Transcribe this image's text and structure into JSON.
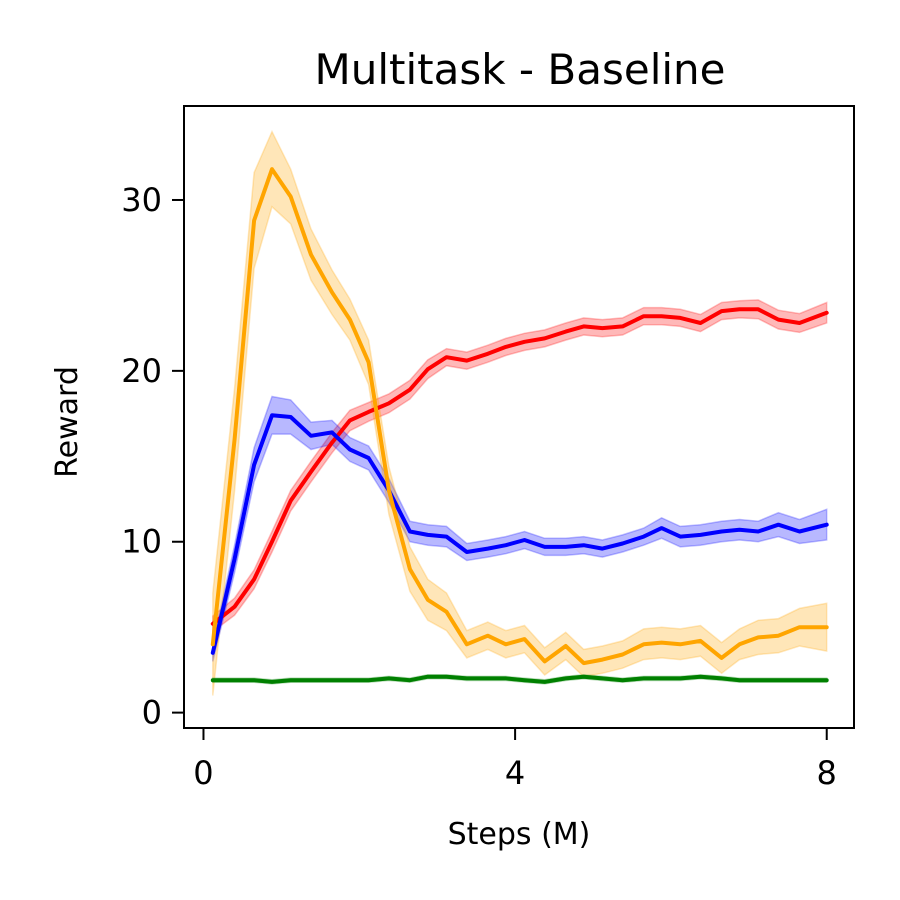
{
  "chart_data": {
    "type": "line",
    "title": "Multitask - Baseline",
    "xlabel": "Steps (M)",
    "ylabel": "Reward",
    "xlim": [
      -0.25,
      8.35
    ],
    "ylim": [
      -0.9,
      35.5
    ],
    "xticks": [
      0,
      4,
      8
    ],
    "yticks": [
      0,
      10,
      20,
      30
    ],
    "grid": false,
    "legend": "none",
    "x": [
      0.12,
      0.4,
      0.65,
      0.88,
      1.12,
      1.38,
      1.65,
      1.88,
      2.12,
      2.38,
      2.65,
      2.88,
      3.12,
      3.38,
      3.65,
      3.88,
      4.12,
      4.38,
      4.65,
      4.88,
      5.12,
      5.38,
      5.65,
      5.88,
      6.12,
      6.38,
      6.65,
      6.88,
      7.12,
      7.38,
      7.65,
      8.0
    ],
    "series": [
      {
        "color": "#ff0000",
        "band_color": "#ff0000",
        "values": [
          5.2,
          6.2,
          7.8,
          10.0,
          12.4,
          14.1,
          15.8,
          17.1,
          17.6,
          18.1,
          18.9,
          20.1,
          20.8,
          20.6,
          21.0,
          21.4,
          21.7,
          21.9,
          22.3,
          22.6,
          22.5,
          22.6,
          23.2,
          23.2,
          23.1,
          22.8,
          23.5,
          23.6,
          23.6,
          23.0,
          22.8,
          23.4
        ],
        "spread": [
          0.45,
          0.5,
          0.55,
          0.6,
          0.6,
          0.6,
          0.6,
          0.6,
          0.55,
          0.55,
          0.55,
          0.55,
          0.5,
          0.5,
          0.5,
          0.5,
          0.5,
          0.5,
          0.5,
          0.5,
          0.5,
          0.5,
          0.5,
          0.5,
          0.5,
          0.5,
          0.5,
          0.5,
          0.55,
          0.55,
          0.55,
          0.6
        ]
      },
      {
        "color": "#0000ff",
        "band_color": "#0000ff",
        "values": [
          3.5,
          9.0,
          14.5,
          17.4,
          17.3,
          16.2,
          16.4,
          15.4,
          14.9,
          13.0,
          10.6,
          10.4,
          10.3,
          9.4,
          9.6,
          9.8,
          10.1,
          9.7,
          9.7,
          9.8,
          9.6,
          9.9,
          10.3,
          10.8,
          10.3,
          10.4,
          10.6,
          10.7,
          10.6,
          11.0,
          10.6,
          11.0
        ],
        "spread": [
          0.5,
          0.8,
          1.0,
          1.1,
          1.0,
          0.8,
          0.7,
          0.7,
          0.7,
          0.7,
          0.6,
          0.6,
          0.6,
          0.5,
          0.5,
          0.5,
          0.5,
          0.5,
          0.5,
          0.5,
          0.5,
          0.5,
          0.5,
          0.6,
          0.6,
          0.6,
          0.6,
          0.6,
          0.6,
          0.7,
          0.7,
          0.9
        ]
      },
      {
        "color": "#ffa500",
        "band_color": "#ffa500",
        "values": [
          4.0,
          16.0,
          28.8,
          31.8,
          30.2,
          26.8,
          24.6,
          23.0,
          20.5,
          13.0,
          8.4,
          6.6,
          5.9,
          4.0,
          4.5,
          4.0,
          4.3,
          3.0,
          3.9,
          2.9,
          3.1,
          3.4,
          4.0,
          4.1,
          4.0,
          4.2,
          3.2,
          4.0,
          4.4,
          4.5,
          5.0,
          5.0
        ],
        "spread": [
          3.0,
          3.0,
          2.8,
          2.2,
          1.6,
          1.5,
          1.3,
          1.2,
          1.3,
          1.4,
          1.3,
          1.2,
          1.1,
          0.8,
          0.8,
          0.8,
          0.8,
          0.8,
          0.8,
          0.8,
          0.8,
          0.8,
          0.9,
          0.9,
          0.9,
          0.9,
          0.9,
          0.9,
          1.0,
          1.0,
          1.1,
          1.4
        ]
      },
      {
        "color": "#008000",
        "band_color": "#008000",
        "values": [
          1.9,
          1.9,
          1.9,
          1.8,
          1.9,
          1.9,
          1.9,
          1.9,
          1.9,
          2.0,
          1.9,
          2.1,
          2.1,
          2.0,
          2.0,
          2.0,
          1.9,
          1.8,
          2.0,
          2.1,
          2.0,
          1.9,
          2.0,
          2.0,
          2.0,
          2.1,
          2.0,
          1.9,
          1.9,
          1.9,
          1.9,
          1.9
        ],
        "spread": [
          0.12,
          0.12,
          0.12,
          0.12,
          0.12,
          0.12,
          0.12,
          0.12,
          0.12,
          0.12,
          0.12,
          0.12,
          0.12,
          0.12,
          0.12,
          0.12,
          0.12,
          0.12,
          0.12,
          0.12,
          0.12,
          0.12,
          0.12,
          0.12,
          0.12,
          0.12,
          0.12,
          0.12,
          0.12,
          0.12,
          0.12,
          0.12
        ]
      }
    ]
  }
}
